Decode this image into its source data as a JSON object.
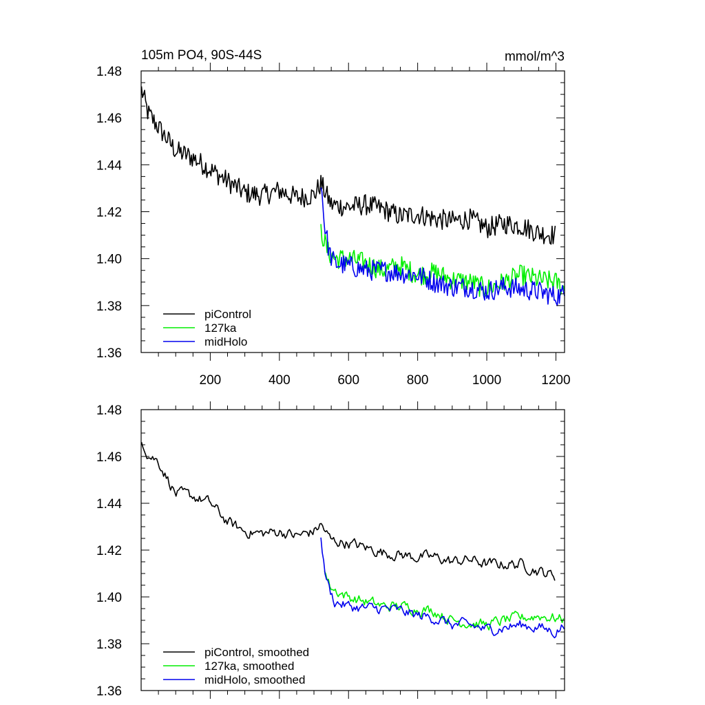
{
  "chart_data": [
    {
      "type": "line",
      "title": "105m PO4, 90S-44S",
      "units": "mmol/m^3",
      "xlabel": "",
      "ylabel": "",
      "xlim": [
        0,
        1225
      ],
      "ylim": [
        1.36,
        1.48
      ],
      "x_ticks": [
        200,
        400,
        600,
        800,
        1000,
        1200
      ],
      "x_tick_labels": [
        "200",
        "400",
        "600",
        "800",
        "1000",
        "1200"
      ],
      "y_ticks": [
        1.36,
        1.38,
        1.4,
        1.42,
        1.44,
        1.46,
        1.48
      ],
      "y_tick_labels": [
        "1.36",
        "1.38",
        "1.40",
        "1.42",
        "1.44",
        "1.46",
        "1.48"
      ],
      "grid": false,
      "legend_position": "bottom-left",
      "series": [
        {
          "name": "piControl",
          "color": "#000000",
          "x": [
            1,
            20,
            50,
            100,
            150,
            200,
            250,
            300,
            350,
            400,
            450,
            500,
            520,
            550,
            600,
            650,
            700,
            750,
            800,
            850,
            900,
            950,
            1000,
            1050,
            1100,
            1150,
            1200
          ],
          "y": [
            1.472,
            1.462,
            1.456,
            1.446,
            1.443,
            1.438,
            1.433,
            1.428,
            1.427,
            1.429,
            1.426,
            1.427,
            1.432,
            1.423,
            1.422,
            1.423,
            1.421,
            1.418,
            1.419,
            1.417,
            1.416,
            1.417,
            1.413,
            1.415,
            1.414,
            1.411,
            1.41
          ]
        },
        {
          "name": "127ka",
          "color": "#00ee00",
          "x": [
            520,
            540,
            560,
            600,
            650,
            700,
            750,
            800,
            850,
            900,
            950,
            1000,
            1050,
            1100,
            1150,
            1200,
            1225
          ],
          "y": [
            1.412,
            1.403,
            1.4,
            1.4,
            1.398,
            1.395,
            1.397,
            1.393,
            1.394,
            1.391,
            1.39,
            1.387,
            1.39,
            1.393,
            1.391,
            1.39,
            1.387
          ]
        },
        {
          "name": "midHolo",
          "color": "#0000ee",
          "x": [
            520,
            530,
            545,
            560,
            600,
            650,
            700,
            750,
            800,
            850,
            900,
            950,
            1000,
            1050,
            1100,
            1150,
            1200,
            1225
          ],
          "y": [
            1.434,
            1.415,
            1.402,
            1.398,
            1.397,
            1.395,
            1.395,
            1.394,
            1.393,
            1.39,
            1.388,
            1.388,
            1.386,
            1.388,
            1.387,
            1.386,
            1.384,
            1.385
          ]
        }
      ]
    },
    {
      "type": "line",
      "title": "",
      "xlabel": "",
      "ylabel": "",
      "xlim": [
        0,
        1225
      ],
      "ylim": [
        1.36,
        1.48
      ],
      "x_ticks": [
        200,
        400,
        600,
        800,
        1000,
        1200
      ],
      "y_ticks": [
        1.36,
        1.38,
        1.4,
        1.42,
        1.44,
        1.46,
        1.48
      ],
      "y_tick_labels": [
        "1.36",
        "1.38",
        "1.40",
        "1.42",
        "1.44",
        "1.46",
        "1.48"
      ],
      "grid": false,
      "legend_position": "bottom-left",
      "series": [
        {
          "name": "piControl, smoothed",
          "color": "#000000",
          "x": [
            1,
            20,
            50,
            100,
            150,
            200,
            250,
            300,
            350,
            400,
            450,
            500,
            520,
            550,
            600,
            650,
            700,
            750,
            800,
            850,
            900,
            950,
            1000,
            1050,
            1100,
            1150,
            1200
          ],
          "y": [
            1.468,
            1.461,
            1.458,
            1.444,
            1.443,
            1.44,
            1.432,
            1.428,
            1.427,
            1.428,
            1.426,
            1.428,
            1.431,
            1.424,
            1.423,
            1.421,
            1.419,
            1.418,
            1.417,
            1.417,
            1.415,
            1.416,
            1.414,
            1.414,
            1.414,
            1.411,
            1.409
          ]
        },
        {
          "name": "127ka, smoothed",
          "color": "#00ee00",
          "x": [
            530,
            545,
            560,
            600,
            650,
            700,
            750,
            800,
            850,
            900,
            950,
            1000,
            1050,
            1100,
            1150,
            1200,
            1225
          ],
          "y": [
            1.411,
            1.405,
            1.403,
            1.4,
            1.398,
            1.396,
            1.396,
            1.395,
            1.394,
            1.39,
            1.389,
            1.388,
            1.39,
            1.391,
            1.392,
            1.391,
            1.39
          ]
        },
        {
          "name": "midHolo, smoothed",
          "color": "#0000ee",
          "x": [
            520,
            530,
            545,
            560,
            600,
            650,
            700,
            750,
            800,
            850,
            900,
            950,
            1000,
            1050,
            1100,
            1150,
            1200,
            1225
          ],
          "y": [
            1.427,
            1.412,
            1.403,
            1.398,
            1.396,
            1.395,
            1.395,
            1.394,
            1.392,
            1.391,
            1.388,
            1.388,
            1.386,
            1.387,
            1.388,
            1.387,
            1.385,
            1.388
          ]
        }
      ]
    }
  ]
}
